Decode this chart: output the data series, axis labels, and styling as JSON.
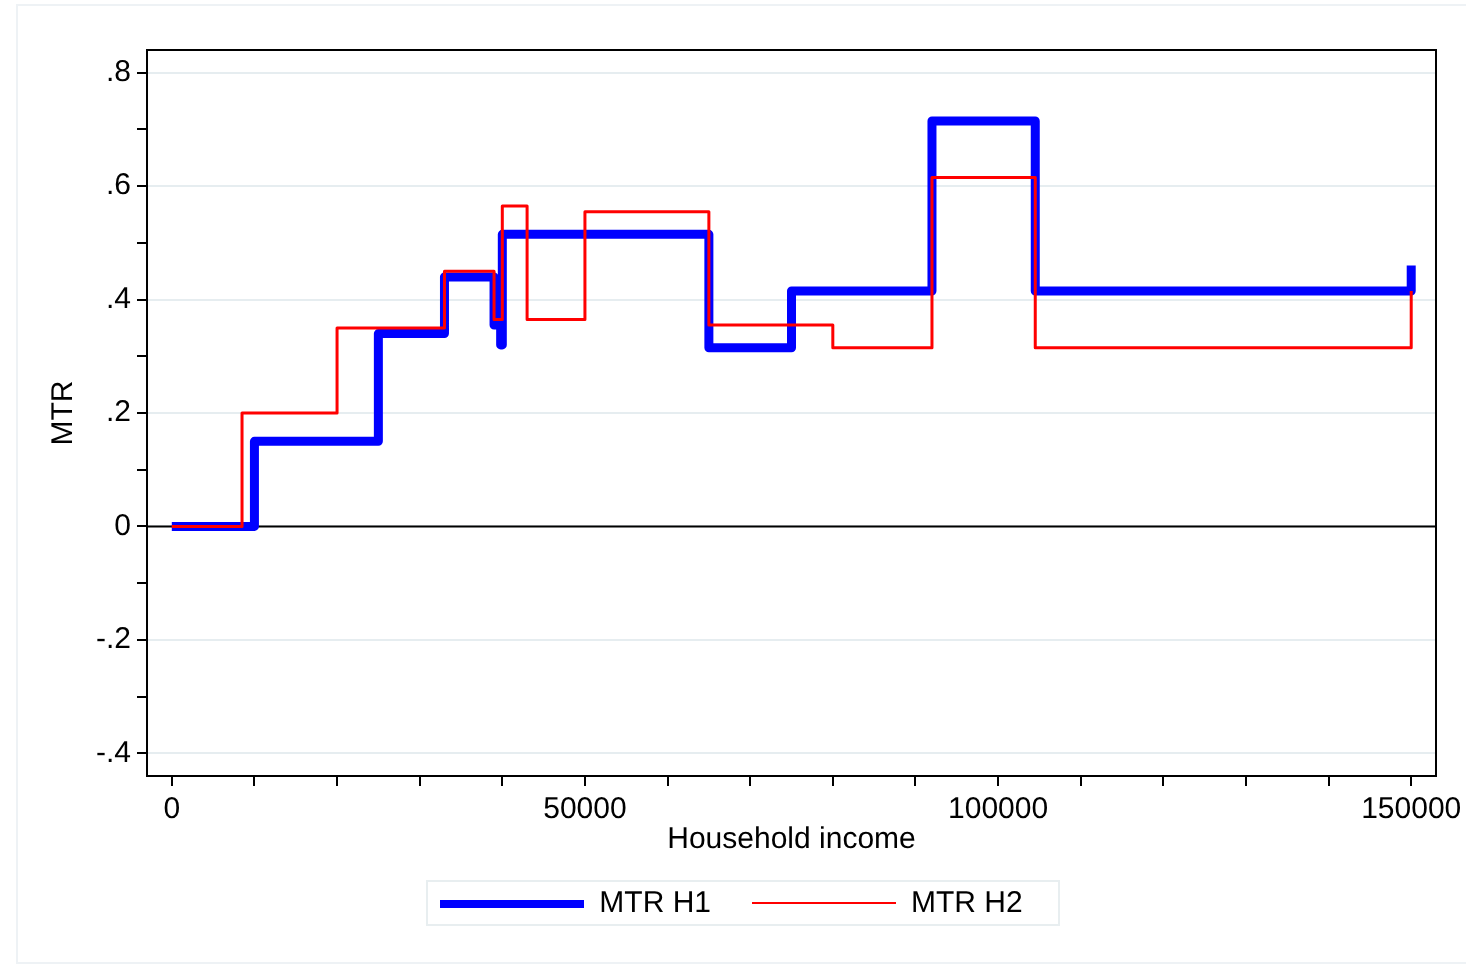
{
  "chart_data": {
    "type": "step",
    "xlabel": "Household income",
    "ylabel": "MTR",
    "xlim": [
      -3000,
      153000
    ],
    "ylim": [
      -0.44,
      0.84
    ],
    "xticks": [
      0,
      {
        "value": 10000,
        "label": null
      },
      {
        "value": 20000,
        "label": null
      },
      {
        "value": 30000,
        "label": null
      },
      {
        "value": 40000,
        "label": null
      },
      50000,
      {
        "value": 60000,
        "label": null
      },
      {
        "value": 70000,
        "label": null
      },
      {
        "value": 80000,
        "label": null
      },
      {
        "value": 90000,
        "label": null
      },
      100000,
      {
        "value": 110000,
        "label": null
      },
      {
        "value": 120000,
        "label": null
      },
      {
        "value": 130000,
        "label": null
      },
      {
        "value": 140000,
        "label": null
      },
      150000
    ],
    "yticks": [
      {
        "value": -0.4,
        "label": "-.4"
      },
      {
        "value": -0.3,
        "label": null
      },
      {
        "value": -0.2,
        "label": "-.2"
      },
      {
        "value": -0.1,
        "label": null
      },
      0,
      {
        "value": 0.1,
        "label": null
      },
      {
        "value": 0.2,
        "label": ".2"
      },
      {
        "value": 0.3,
        "label": null
      },
      {
        "value": 0.4,
        "label": ".4"
      },
      {
        "value": 0.5,
        "label": null
      },
      {
        "value": 0.6,
        "label": ".6"
      },
      {
        "value": 0.7,
        "label": null
      },
      {
        "value": 0.8,
        "label": ".8"
      }
    ],
    "grid": "y",
    "legend": "bottom",
    "ref_lines": [
      {
        "axis": "y",
        "value": 0,
        "color": "#000000"
      }
    ],
    "series": [
      {
        "name": "MTR H1",
        "color": "#0000ff",
        "x": [
          0,
          10000,
          25000,
          33000,
          39000,
          39800,
          40000,
          65000,
          75000,
          92000,
          104500,
          150000
        ],
        "values": [
          0,
          0.15,
          0.34,
          0.44,
          0.355,
          0.32,
          0.515,
          0.315,
          0.415,
          0.715,
          0.415,
          0.46
        ]
      },
      {
        "name": "MTR H2",
        "color": "#ff0000",
        "x": [
          0,
          8500,
          20000,
          33000,
          39000,
          40000,
          43000,
          50000,
          65000,
          80000,
          92000,
          104500,
          150000
        ],
        "values": [
          0,
          0.2,
          0.35,
          0.45,
          0.365,
          0.565,
          0.365,
          0.555,
          0.355,
          0.315,
          0.615,
          0.315,
          0.415
        ]
      }
    ]
  }
}
